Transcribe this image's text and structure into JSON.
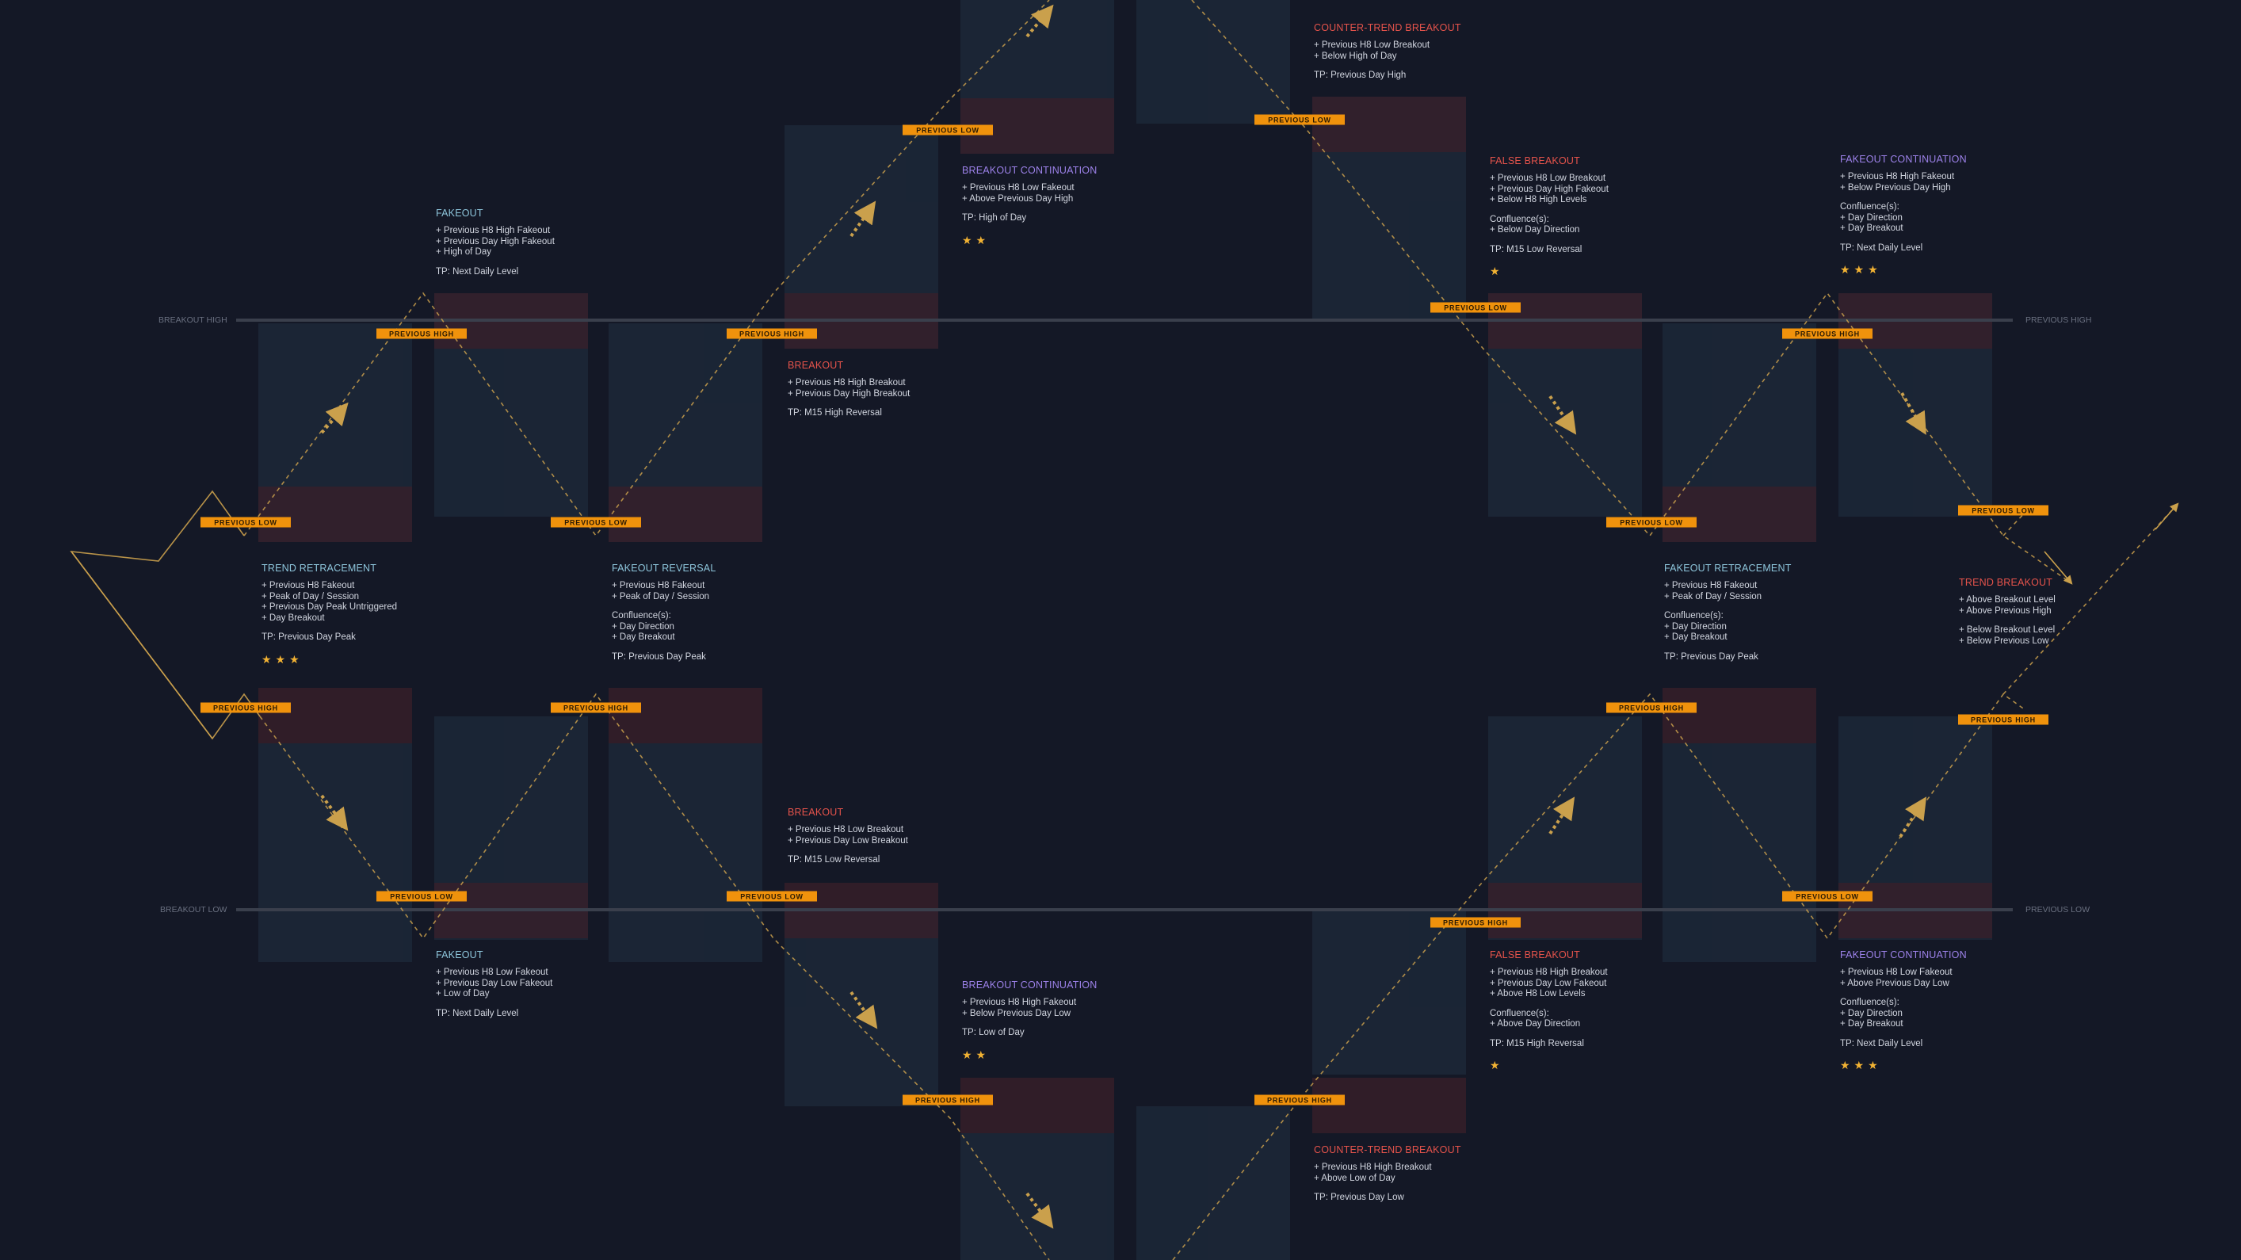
{
  "colors": {
    "background": "#141826",
    "path": "#caa04c",
    "tag_fill": "#f0920c",
    "tag_text": "#2a1a04",
    "blue_title": "#8ec6dc",
    "red_title": "#e5534b",
    "purple_title": "#9d82ea",
    "star": "#f2b233"
  },
  "levels": {
    "breakout_high_left": "BREAKOUT HIGH",
    "previous_high_right": "PREVIOUS HIGH",
    "breakout_low_left": "BREAKOUT LOW",
    "previous_low_right": "PREVIOUS LOW"
  },
  "tags": {
    "previous_high": "PREVIOUS HIGH",
    "previous_low": "PREVIOUS LOW"
  },
  "cards": {
    "trend_retracement": {
      "title": "TREND RETRACEMENT",
      "lines": [
        "+ Previous H8 Fakeout",
        "+ Peak of Day / Session",
        "+ Previous Day Peak Untriggered",
        "+ Day Breakout"
      ],
      "tp": "TP: Previous Day Peak",
      "stars": "★★★"
    },
    "fakeout_top": {
      "title": "FAKEOUT",
      "lines": [
        "+ Previous H8 High Fakeout",
        "+ Previous Day High Fakeout",
        "+ High of Day"
      ],
      "tp": "TP: Next Daily Level"
    },
    "fakeout_reversal": {
      "title": "FAKEOUT REVERSAL",
      "lines": [
        "+ Previous H8 Fakeout",
        "+ Peak of Day / Session"
      ],
      "confluence": [
        "Confluence(s):",
        "+ Day Direction",
        "+ Day Breakout"
      ],
      "tp": "TP: Previous Day Peak"
    },
    "breakout_top": {
      "title": "BREAKOUT",
      "lines": [
        "+ Previous H8 High Breakout",
        "+ Previous Day High Breakout"
      ],
      "tp": "TP: M15 High Reversal"
    },
    "breakout_continuation_top": {
      "title": "BREAKOUT CONTINUATION",
      "lines": [
        "+ Previous H8 Low Fakeout",
        "+ Above Previous Day High"
      ],
      "tp": "TP: High of Day",
      "stars": "★★"
    },
    "counter_trend_top": {
      "title": "COUNTER-TREND BREAKOUT",
      "lines": [
        "+ Previous H8 Low Breakout",
        "+ Below High of Day"
      ],
      "tp": "TP: Previous Day High"
    },
    "false_breakout_top": {
      "title": "FALSE BREAKOUT",
      "lines": [
        "+ Previous H8 Low Breakout",
        "+ Previous Day High Fakeout",
        "+ Below H8 High Levels"
      ],
      "confluence": [
        "Confluence(s):",
        "+ Below Day Direction"
      ],
      "tp": "TP: M15 Low Reversal",
      "stars": "★"
    },
    "fakeout_retracement": {
      "title": "FAKEOUT RETRACEMENT",
      "lines": [
        "+ Previous H8 Fakeout",
        "+ Peak of Day / Session"
      ],
      "confluence": [
        "Confluence(s):",
        "+ Day Direction",
        "+ Day Breakout"
      ],
      "tp": "TP: Previous Day Peak"
    },
    "fakeout_continuation_top": {
      "title": "FAKEOUT CONTINUATION",
      "lines": [
        "+ Previous H8 High Fakeout",
        "+ Below Previous Day High"
      ],
      "confluence": [
        "Confluence(s):",
        "+ Day Direction",
        "+ Day Breakout"
      ],
      "tp": "TP: Next Daily Level",
      "stars": "★★★"
    },
    "trend_breakout": {
      "title": "TREND BREAKOUT",
      "lines": [
        "+ Above Breakout Level",
        "+ Above Previous High"
      ],
      "lines2": [
        "+ Below Breakout Level",
        "+ Below Previous Low"
      ]
    },
    "breakout_bottom": {
      "title": "BREAKOUT",
      "lines": [
        "+ Previous H8 Low Breakout",
        "+ Previous Day Low Breakout"
      ],
      "tp": "TP: M15 Low Reversal"
    },
    "fakeout_bottom": {
      "title": "FAKEOUT",
      "lines": [
        "+ Previous H8 Low Fakeout",
        "+ Previous Day Low Fakeout",
        "+ Low of Day"
      ],
      "tp": "TP: Next Daily Level"
    },
    "breakout_continuation_bottom": {
      "title": "BREAKOUT CONTINUATION",
      "lines": [
        "+ Previous H8 High Fakeout",
        "+ Below Previous Day Low"
      ],
      "tp": "TP: Low of Day",
      "stars": "★★"
    },
    "false_breakout_bottom": {
      "title": "FALSE BREAKOUT",
      "lines": [
        "+ Previous H8 High Breakout",
        "+ Previous Day Low Fakeout",
        "+ Above H8 Low Levels"
      ],
      "confluence": [
        "Confluence(s):",
        "+ Above Day Direction"
      ],
      "tp": "TP: M15 High Reversal",
      "stars": "★"
    },
    "fakeout_continuation_bottom": {
      "title": "FAKEOUT CONTINUATION",
      "lines": [
        "+ Previous H8 Low Fakeout",
        "+ Above Previous Day Low"
      ],
      "confluence": [
        "Confluence(s):",
        "+ Day Direction",
        "+ Day Breakout"
      ],
      "tp": "TP: Next Daily Level",
      "stars": "★★★"
    },
    "counter_trend_bottom": {
      "title": "COUNTER-TREND BREAKOUT",
      "lines": [
        "+ Previous H8 High Breakout",
        "+ Above Low of Day"
      ],
      "tp": "TP: Previous Day Low"
    }
  }
}
